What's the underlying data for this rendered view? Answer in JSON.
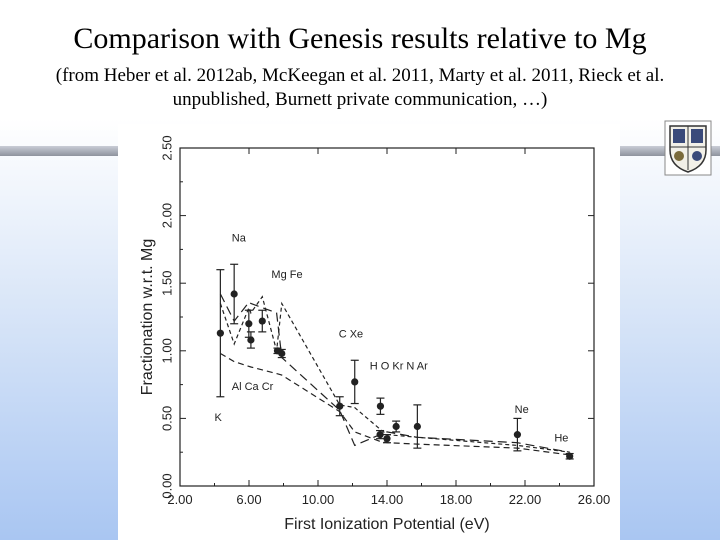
{
  "slide": {
    "title": "Comparison with Genesis results relative to Mg",
    "subtitle_line1": "(from Heber et al. 2012ab, McKeegan et al. 2011, Marty et al. 2011, Rieck et al.",
    "subtitle_line2": "unpublished, Burnett private communication, …)"
  },
  "logo": {
    "icon": "university-crest-icon"
  },
  "colors": {
    "accent_bar": "#8e939e",
    "background_bottom": "#a9c6f2",
    "ink": "#222222"
  },
  "chart_data": {
    "type": "scatter",
    "title": "",
    "xlabel": "First Ionization Potential (eV)",
    "ylabel": "Fractionation w.r.t. Mg",
    "xlim": [
      2.0,
      26.0
    ],
    "ylim": [
      0.0,
      2.5
    ],
    "x_ticks": [
      "2.00",
      "6.00",
      "10.00",
      "14.00",
      "18.00",
      "22.00",
      "26.00"
    ],
    "y_ticks": [
      "0.00",
      "0.50",
      "1.00",
      "1.50",
      "2.00",
      "2.50"
    ],
    "points": [
      {
        "x": 4.34,
        "y": 1.13,
        "err": 0.47
      },
      {
        "x": 5.14,
        "y": 1.42,
        "err": 0.22
      },
      {
        "x": 5.99,
        "y": 1.2,
        "err": 0.1
      },
      {
        "x": 6.11,
        "y": 1.08,
        "err": 0.06
      },
      {
        "x": 6.77,
        "y": 1.22,
        "err": 0.08
      },
      {
        "x": 7.65,
        "y": 1.0,
        "err": 0.02
      },
      {
        "x": 7.9,
        "y": 0.98,
        "err": 0.03
      },
      {
        "x": 11.26,
        "y": 0.59,
        "err": 0.07
      },
      {
        "x": 12.13,
        "y": 0.77,
        "err": 0.16
      },
      {
        "x": 13.6,
        "y": 0.38,
        "err": 0.03
      },
      {
        "x": 13.62,
        "y": 0.59,
        "err": 0.06
      },
      {
        "x": 14.0,
        "y": 0.35,
        "err": 0.03
      },
      {
        "x": 14.53,
        "y": 0.44,
        "err": 0.04
      },
      {
        "x": 15.76,
        "y": 0.44,
        "err": 0.16
      },
      {
        "x": 21.56,
        "y": 0.38,
        "err": 0.12
      },
      {
        "x": 24.59,
        "y": 0.22,
        "err": 0.02
      }
    ],
    "series": [
      {
        "name": "model-dashed-a",
        "style": "dash-long",
        "x": [
          4.34,
          5.14,
          6.0,
          6.11,
          7.6,
          7.9,
          11.26,
          12.13,
          13.6,
          14.0,
          15.76,
          21.56,
          24.59
        ],
        "y": [
          1.42,
          1.22,
          1.36,
          1.35,
          1.28,
          0.95,
          0.56,
          0.3,
          0.38,
          0.4,
          0.36,
          0.32,
          0.25
        ]
      },
      {
        "name": "model-dashed-b",
        "style": "dash-short",
        "x": [
          4.34,
          5.14,
          6.0,
          6.11,
          6.77,
          7.6,
          7.9,
          11.26,
          12.13,
          13.6,
          14.0,
          15.76,
          21.56,
          24.59
        ],
        "y": [
          1.35,
          1.05,
          1.32,
          1.28,
          1.4,
          1.0,
          1.35,
          0.6,
          0.58,
          0.42,
          0.38,
          0.36,
          0.3,
          0.25
        ]
      },
      {
        "name": "model-dashed-c",
        "style": "dash-mid",
        "x": [
          4.34,
          5.14,
          6.11,
          7.65,
          7.9,
          11.26,
          12.13,
          13.6,
          14.0,
          15.76,
          21.56,
          24.59
        ],
        "y": [
          0.98,
          0.92,
          0.88,
          0.83,
          0.82,
          0.55,
          0.4,
          0.33,
          0.32,
          0.31,
          0.28,
          0.23
        ]
      }
    ],
    "annotations": [
      {
        "text": "Na",
        "x": 5.0,
        "y": 1.81
      },
      {
        "text": "Mg Fe",
        "x": 7.3,
        "y": 1.54
      },
      {
        "text": "C Xe",
        "x": 11.2,
        "y": 1.1
      },
      {
        "text": "H O Kr N Ar",
        "x": 13.0,
        "y": 0.86
      },
      {
        "text": "Al Ca Cr",
        "x": 5.0,
        "y": 0.71
      },
      {
        "text": "K",
        "x": 4.0,
        "y": 0.48
      },
      {
        "text": "Ne",
        "x": 21.4,
        "y": 0.54
      },
      {
        "text": "He",
        "x": 23.7,
        "y": 0.33
      }
    ]
  }
}
